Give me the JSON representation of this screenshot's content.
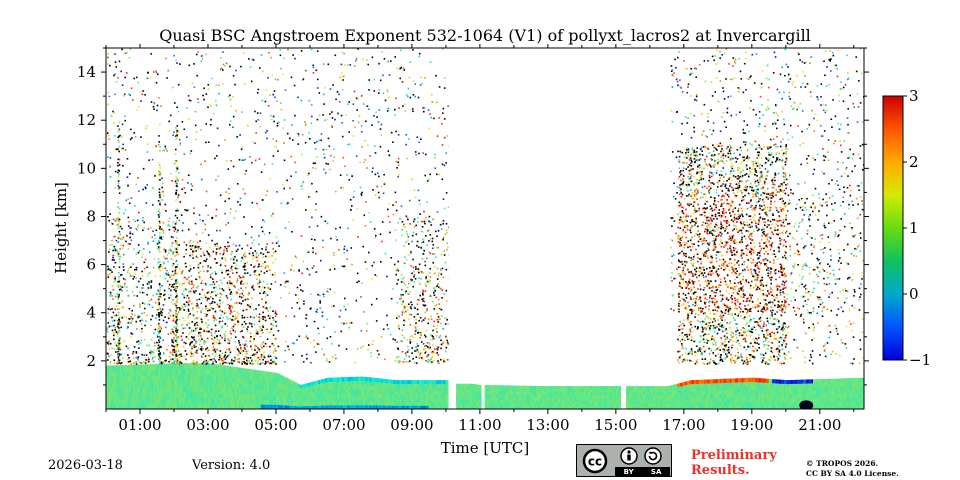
{
  "chart_data": {
    "type": "heatmap",
    "title": "Quasi BSC Angstroem Exponent 532-1064 (V1) of pollyxt_lacros2 at Invercargill",
    "xlabel": "Time [UTC]",
    "ylabel": "Height [km]",
    "xlim_hours": [
      0.0,
      22.3
    ],
    "ylim_km": [
      0,
      15
    ],
    "x_ticks": [
      "01:00",
      "03:00",
      "05:00",
      "07:00",
      "09:00",
      "11:00",
      "13:00",
      "15:00",
      "17:00",
      "19:00",
      "21:00"
    ],
    "x_tick_hours": [
      1,
      3,
      5,
      7,
      9,
      11,
      13,
      15,
      17,
      19,
      21
    ],
    "y_ticks": [
      "2",
      "4",
      "6",
      "8",
      "10",
      "12",
      "14"
    ],
    "y_tick_values": [
      2,
      4,
      6,
      8,
      10,
      12,
      14
    ],
    "colorbar": {
      "range": [
        -1,
        3
      ],
      "ticks": [
        "3",
        "2",
        "1",
        "0",
        "−1"
      ],
      "tick_values": [
        3,
        2,
        1,
        0,
        -1
      ],
      "colormap": "jet"
    },
    "data_gaps_hours": [
      [
        10.08,
        10.25
      ],
      [
        11.05,
        11.05
      ],
      [
        15.15,
        15.25
      ]
    ],
    "boundary_layer_top_km": [
      [
        0.0,
        1.8
      ],
      [
        2.0,
        1.9
      ],
      [
        3.0,
        1.9
      ],
      [
        4.0,
        1.7
      ],
      [
        5.0,
        1.5
      ],
      [
        5.7,
        1.0
      ],
      [
        6.5,
        1.3
      ],
      [
        7.5,
        1.35
      ],
      [
        8.5,
        1.2
      ],
      [
        10.0,
        1.2
      ],
      [
        11.0,
        1.0
      ],
      [
        13.0,
        0.95
      ],
      [
        15.0,
        0.95
      ],
      [
        16.5,
        0.95
      ],
      [
        17.2,
        1.2
      ],
      [
        19.0,
        1.3
      ],
      [
        20.0,
        1.2
      ],
      [
        22.3,
        1.3
      ]
    ],
    "features": [
      {
        "name": "upper-scatter-aerosol",
        "t_range": [
          0.0,
          10.1
        ],
        "h_range_km": [
          2.0,
          15.0
        ],
        "value_approx": 1.0
      },
      {
        "name": "high-angstrom-aerosol-layer",
        "t_range": [
          16.8,
          20.0
        ],
        "h_range_km": [
          2.0,
          11.0
        ],
        "value_approx": 2.0
      },
      {
        "name": "boundary-layer-low-exponent",
        "t_range": [
          0.0,
          22.3
        ],
        "h_range_km": [
          0.0,
          1.9
        ],
        "value_approx": 0.8
      }
    ]
  },
  "footer": {
    "date": "2026-03-18",
    "version": "Version: 4.0",
    "prelim_line1": "Preliminary",
    "prelim_line2": "Results.",
    "copyright_line1": "© TROPOS 2026.",
    "copyright_line2": "CC BY SA 4.0 License.",
    "license_left": "cc",
    "license_by": "BY",
    "license_sa": "SA"
  },
  "colors": {
    "prelim": "#e8322c",
    "badge_bg": "#aab2ab"
  }
}
